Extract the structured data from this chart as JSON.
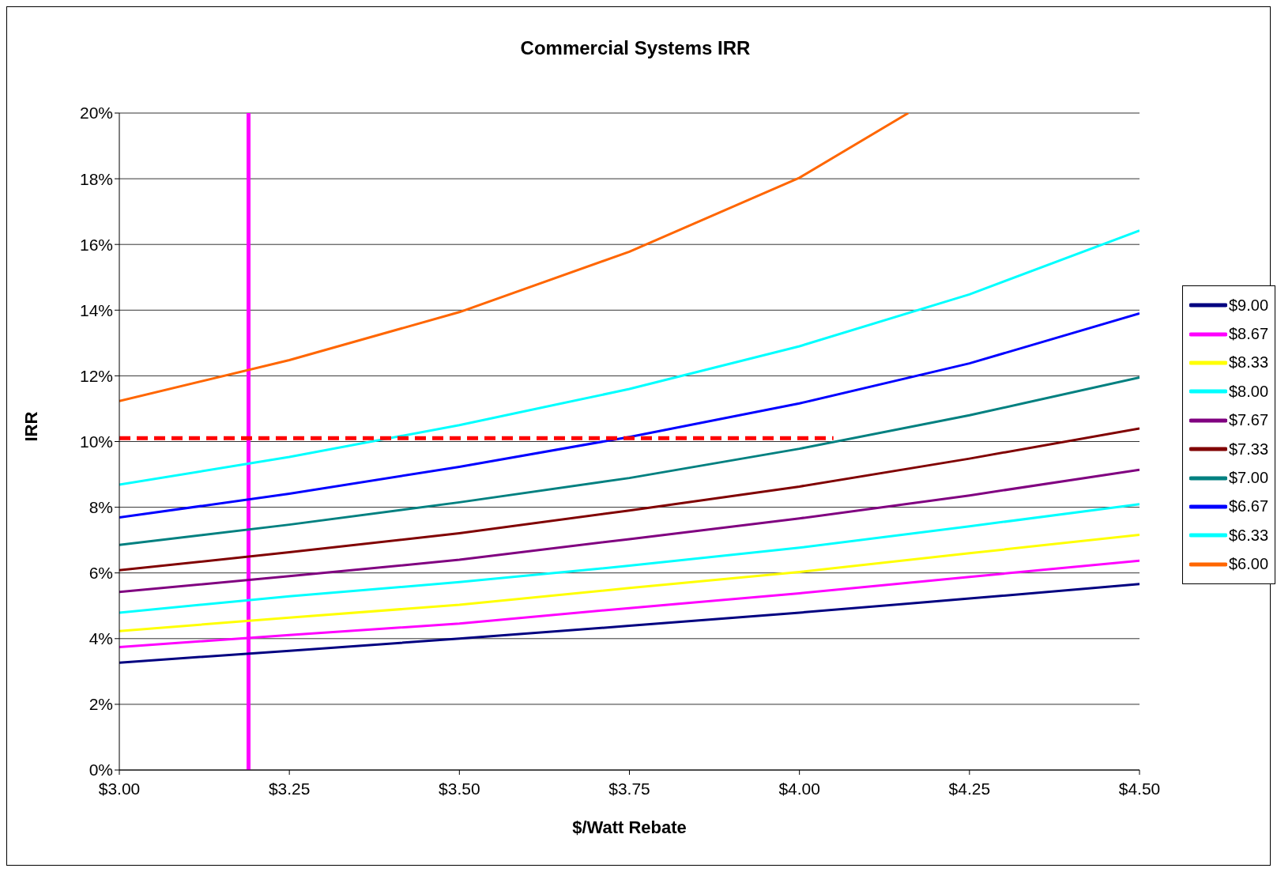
{
  "chart_data": {
    "type": "line",
    "title": "Commercial Systems IRR",
    "xlabel": "$/Watt Rebate",
    "ylabel": "IRR",
    "x": [
      3.0,
      3.25,
      3.5,
      3.75,
      4.0,
      4.25,
      4.5
    ],
    "xlim": [
      3.0,
      4.5
    ],
    "xticks": [
      {
        "value": 3.0,
        "label": "$3.00"
      },
      {
        "value": 3.25,
        "label": "$3.25"
      },
      {
        "value": 3.5,
        "label": "$3.50"
      },
      {
        "value": 3.75,
        "label": "$3.75"
      },
      {
        "value": 4.0,
        "label": "$4.00"
      },
      {
        "value": 4.25,
        "label": "$4.25"
      },
      {
        "value": 4.5,
        "label": "$4.50"
      }
    ],
    "ylim": [
      0,
      20
    ],
    "yticks": [
      {
        "value": 0,
        "label": "0%"
      },
      {
        "value": 2,
        "label": "2%"
      },
      {
        "value": 4,
        "label": "4%"
      },
      {
        "value": 6,
        "label": "6%"
      },
      {
        "value": 8,
        "label": "8%"
      },
      {
        "value": 10,
        "label": "10%"
      },
      {
        "value": 12,
        "label": "12%"
      },
      {
        "value": 14,
        "label": "14%"
      },
      {
        "value": 16,
        "label": "16%"
      },
      {
        "value": 18,
        "label": "18%"
      },
      {
        "value": 20,
        "label": "20%"
      }
    ],
    "grid": "y",
    "legend": "right",
    "marker": "none",
    "line_style": "solid",
    "series": [
      {
        "name": "$9.00",
        "color": "#000080",
        "values": [
          3.27,
          3.63,
          4.0,
          4.39,
          4.79,
          5.22,
          5.66
        ]
      },
      {
        "name": "$8.67",
        "color": "#ff00ff",
        "values": [
          3.74,
          4.11,
          4.46,
          4.93,
          5.38,
          5.88,
          6.37
        ]
      },
      {
        "name": "$8.33",
        "color": "#ffff00",
        "values": [
          4.23,
          4.64,
          5.03,
          5.54,
          6.03,
          6.6,
          7.16
        ]
      },
      {
        "name": "$8.00",
        "color": "#00ffff",
        "values": [
          4.79,
          5.29,
          5.72,
          6.22,
          6.77,
          7.42,
          8.09
        ]
      },
      {
        "name": "$7.67",
        "color": "#800080",
        "values": [
          5.42,
          5.9,
          6.4,
          7.03,
          7.66,
          8.36,
          9.14
        ]
      },
      {
        "name": "$7.33",
        "color": "#800000",
        "values": [
          6.08,
          6.63,
          7.21,
          7.9,
          8.63,
          9.48,
          10.4
        ]
      },
      {
        "name": "$7.00",
        "color": "#008080",
        "values": [
          6.85,
          7.47,
          8.15,
          8.89,
          9.78,
          10.8,
          11.95
        ]
      },
      {
        "name": "$6.67",
        "color": "#0000ff",
        "values": [
          7.69,
          8.41,
          9.23,
          10.14,
          11.16,
          12.38,
          13.9
        ]
      },
      {
        "name": "$6.33",
        "color": "#00ffff",
        "values": [
          8.69,
          9.53,
          10.5,
          11.6,
          12.9,
          14.48,
          16.42
        ]
      },
      {
        "name": "$6.00",
        "color": "#ff6600",
        "x": [
          3.0,
          3.25,
          3.5,
          3.75,
          4.0,
          4.16
        ],
        "values": [
          11.23,
          12.48,
          13.94,
          15.78,
          18.03,
          20
        ]
      },
      {
        "color": "#ff0000",
        "line_style": "dashed",
        "x": [
          3.0,
          4.05
        ],
        "values": [
          10.1,
          10.1
        ]
      }
    ],
    "ref_lines": [
      {
        "axis": "x",
        "value": 3.19,
        "color": "#ff00ff"
      }
    ]
  }
}
